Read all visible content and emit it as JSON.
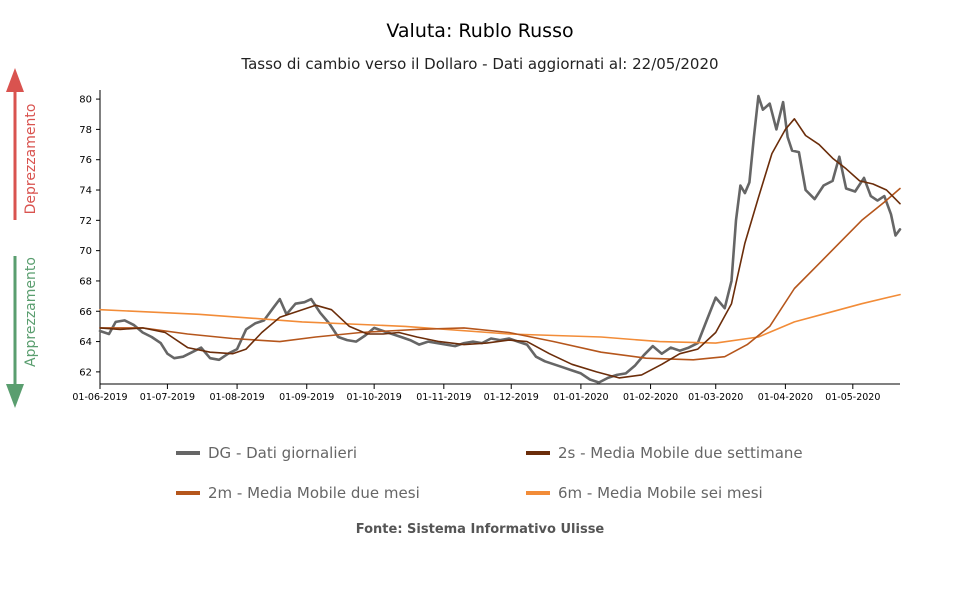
{
  "title": "Valuta: Rublo Russo",
  "subtitle": "Tasso di cambio verso il Dollaro - Dati aggiornati al: 22/05/2020",
  "side_labels": {
    "up": "Deprezzamento",
    "down": "Apprezzamento",
    "up_color": "#d9534f",
    "down_color": "#5a9e6f"
  },
  "source": "Fonte: Sistema Informativo Ulisse",
  "chart_data": {
    "type": "line",
    "title": "Valuta: Rublo Russo",
    "subtitle": "Tasso di cambio verso il Dollaro - Dati aggiornati al: 22/05/2020",
    "xlabel": "",
    "ylabel": "",
    "ylim": [
      61.2,
      80.6
    ],
    "yticks": [
      62,
      64,
      66,
      68,
      70,
      72,
      74,
      76,
      78,
      80
    ],
    "xticks": [
      "01-06-2019",
      "01-07-2019",
      "01-08-2019",
      "01-09-2019",
      "01-10-2019",
      "01-11-2019",
      "01-12-2019",
      "01-01-2020",
      "01-02-2020",
      "01-03-2020",
      "01-04-2020",
      "01-05-2020"
    ],
    "x_range": [
      "2019-06-01",
      "2020-05-22"
    ],
    "grid": false,
    "legend_position": "bottom",
    "series": [
      {
        "name": "DG - Dati giornalieri",
        "color": "#666666",
        "width": 2.6,
        "points": [
          [
            "2019-06-01",
            64.7
          ],
          [
            "2019-06-05",
            64.5
          ],
          [
            "2019-06-08",
            65.3
          ],
          [
            "2019-06-12",
            65.4
          ],
          [
            "2019-06-16",
            65.1
          ],
          [
            "2019-06-20",
            64.6
          ],
          [
            "2019-06-24",
            64.3
          ],
          [
            "2019-06-28",
            63.9
          ],
          [
            "2019-07-01",
            63.2
          ],
          [
            "2019-07-04",
            62.9
          ],
          [
            "2019-07-08",
            63.0
          ],
          [
            "2019-07-12",
            63.3
          ],
          [
            "2019-07-16",
            63.6
          ],
          [
            "2019-07-20",
            62.9
          ],
          [
            "2019-07-24",
            62.8
          ],
          [
            "2019-07-28",
            63.2
          ],
          [
            "2019-08-01",
            63.5
          ],
          [
            "2019-08-05",
            64.8
          ],
          [
            "2019-08-09",
            65.2
          ],
          [
            "2019-08-13",
            65.4
          ],
          [
            "2019-08-17",
            66.2
          ],
          [
            "2019-08-20",
            66.8
          ],
          [
            "2019-08-23",
            65.8
          ],
          [
            "2019-08-27",
            66.5
          ],
          [
            "2019-08-31",
            66.6
          ],
          [
            "2019-09-03",
            66.8
          ],
          [
            "2019-09-07",
            65.9
          ],
          [
            "2019-09-11",
            65.2
          ],
          [
            "2019-09-15",
            64.3
          ],
          [
            "2019-09-19",
            64.1
          ],
          [
            "2019-09-23",
            64.0
          ],
          [
            "2019-09-27",
            64.4
          ],
          [
            "2019-10-01",
            64.9
          ],
          [
            "2019-10-05",
            64.7
          ],
          [
            "2019-10-09",
            64.5
          ],
          [
            "2019-10-13",
            64.3
          ],
          [
            "2019-10-17",
            64.1
          ],
          [
            "2019-10-21",
            63.8
          ],
          [
            "2019-10-25",
            64.0
          ],
          [
            "2019-10-29",
            63.9
          ],
          [
            "2019-11-02",
            63.8
          ],
          [
            "2019-11-06",
            63.7
          ],
          [
            "2019-11-10",
            63.9
          ],
          [
            "2019-11-14",
            64.0
          ],
          [
            "2019-11-18",
            63.9
          ],
          [
            "2019-11-22",
            64.2
          ],
          [
            "2019-11-26",
            64.1
          ],
          [
            "2019-11-30",
            64.2
          ],
          [
            "2019-12-04",
            64.0
          ],
          [
            "2019-12-08",
            63.8
          ],
          [
            "2019-12-12",
            63.0
          ],
          [
            "2019-12-16",
            62.7
          ],
          [
            "2019-12-20",
            62.5
          ],
          [
            "2019-12-24",
            62.3
          ],
          [
            "2019-12-28",
            62.1
          ],
          [
            "2020-01-01",
            61.9
          ],
          [
            "2020-01-05",
            61.5
          ],
          [
            "2020-01-09",
            61.3
          ],
          [
            "2020-01-13",
            61.6
          ],
          [
            "2020-01-17",
            61.8
          ],
          [
            "2020-01-21",
            61.9
          ],
          [
            "2020-01-25",
            62.4
          ],
          [
            "2020-01-29",
            63.1
          ],
          [
            "2020-02-02",
            63.7
          ],
          [
            "2020-02-06",
            63.2
          ],
          [
            "2020-02-10",
            63.6
          ],
          [
            "2020-02-14",
            63.4
          ],
          [
            "2020-02-18",
            63.6
          ],
          [
            "2020-02-22",
            63.9
          ],
          [
            "2020-02-26",
            65.4
          ],
          [
            "2020-03-01",
            66.9
          ],
          [
            "2020-03-05",
            66.2
          ],
          [
            "2020-03-08",
            68.0
          ],
          [
            "2020-03-10",
            72.0
          ],
          [
            "2020-03-12",
            74.3
          ],
          [
            "2020-03-14",
            73.8
          ],
          [
            "2020-03-16",
            74.5
          ],
          [
            "2020-03-18",
            77.5
          ],
          [
            "2020-03-20",
            80.2
          ],
          [
            "2020-03-22",
            79.3
          ],
          [
            "2020-03-25",
            79.7
          ],
          [
            "2020-03-28",
            78.0
          ],
          [
            "2020-03-31",
            79.8
          ],
          [
            "2020-04-02",
            77.5
          ],
          [
            "2020-04-04",
            76.6
          ],
          [
            "2020-04-07",
            76.5
          ],
          [
            "2020-04-10",
            74.0
          ],
          [
            "2020-04-14",
            73.4
          ],
          [
            "2020-04-18",
            74.3
          ],
          [
            "2020-04-22",
            74.6
          ],
          [
            "2020-04-25",
            76.2
          ],
          [
            "2020-04-28",
            74.1
          ],
          [
            "2020-05-02",
            73.9
          ],
          [
            "2020-05-06",
            74.8
          ],
          [
            "2020-05-09",
            73.6
          ],
          [
            "2020-05-12",
            73.3
          ],
          [
            "2020-05-15",
            73.6
          ],
          [
            "2020-05-18",
            72.4
          ],
          [
            "2020-05-20",
            71.0
          ],
          [
            "2020-05-22",
            71.4
          ]
        ]
      },
      {
        "name": "2s - Media Mobile due settimane",
        "color": "#6b2d0a",
        "width": 1.6,
        "points": [
          [
            "2019-06-01",
            64.9
          ],
          [
            "2019-06-10",
            64.8
          ],
          [
            "2019-06-20",
            64.9
          ],
          [
            "2019-06-30",
            64.6
          ],
          [
            "2019-07-10",
            63.6
          ],
          [
            "2019-07-20",
            63.3
          ],
          [
            "2019-07-30",
            63.2
          ],
          [
            "2019-08-05",
            63.5
          ],
          [
            "2019-08-12",
            64.6
          ],
          [
            "2019-08-20",
            65.6
          ],
          [
            "2019-08-28",
            66.0
          ],
          [
            "2019-09-05",
            66.4
          ],
          [
            "2019-09-12",
            66.1
          ],
          [
            "2019-09-20",
            65.0
          ],
          [
            "2019-09-28",
            64.5
          ],
          [
            "2019-10-05",
            64.5
          ],
          [
            "2019-10-12",
            64.6
          ],
          [
            "2019-10-20",
            64.3
          ],
          [
            "2019-10-30",
            64.0
          ],
          [
            "2019-11-10",
            63.8
          ],
          [
            "2019-11-20",
            63.9
          ],
          [
            "2019-11-30",
            64.1
          ],
          [
            "2019-12-08",
            64.0
          ],
          [
            "2019-12-18",
            63.2
          ],
          [
            "2019-12-28",
            62.5
          ],
          [
            "2020-01-08",
            62.0
          ],
          [
            "2020-01-18",
            61.6
          ],
          [
            "2020-01-28",
            61.8
          ],
          [
            "2020-02-06",
            62.5
          ],
          [
            "2020-02-14",
            63.2
          ],
          [
            "2020-02-22",
            63.5
          ],
          [
            "2020-03-01",
            64.6
          ],
          [
            "2020-03-08",
            66.5
          ],
          [
            "2020-03-14",
            70.5
          ],
          [
            "2020-03-20",
            73.5
          ],
          [
            "2020-03-26",
            76.4
          ],
          [
            "2020-04-01",
            78.0
          ],
          [
            "2020-04-05",
            78.7
          ],
          [
            "2020-04-10",
            77.6
          ],
          [
            "2020-04-16",
            77.0
          ],
          [
            "2020-04-22",
            76.1
          ],
          [
            "2020-04-28",
            75.4
          ],
          [
            "2020-05-04",
            74.6
          ],
          [
            "2020-05-10",
            74.4
          ],
          [
            "2020-05-16",
            74.0
          ],
          [
            "2020-05-22",
            73.1
          ]
        ]
      },
      {
        "name": "2m - Media Mobile due mesi",
        "color": "#b5561c",
        "width": 1.6,
        "points": [
          [
            "2019-06-01",
            64.9
          ],
          [
            "2019-06-20",
            64.9
          ],
          [
            "2019-07-10",
            64.5
          ],
          [
            "2019-07-30",
            64.2
          ],
          [
            "2019-08-20",
            64.0
          ],
          [
            "2019-09-05",
            64.3
          ],
          [
            "2019-09-25",
            64.6
          ],
          [
            "2019-10-20",
            64.8
          ],
          [
            "2019-11-10",
            64.9
          ],
          [
            "2019-11-30",
            64.6
          ],
          [
            "2019-12-20",
            64.0
          ],
          [
            "2020-01-10",
            63.3
          ],
          [
            "2020-01-30",
            62.9
          ],
          [
            "2020-02-20",
            62.8
          ],
          [
            "2020-03-05",
            63.0
          ],
          [
            "2020-03-15",
            63.8
          ],
          [
            "2020-03-25",
            65.0
          ],
          [
            "2020-04-05",
            67.5
          ],
          [
            "2020-04-15",
            69.0
          ],
          [
            "2020-04-25",
            70.5
          ],
          [
            "2020-05-05",
            72.0
          ],
          [
            "2020-05-15",
            73.2
          ],
          [
            "2020-05-22",
            74.1
          ]
        ]
      },
      {
        "name": "6m - Media Mobile sei mesi",
        "color": "#f28c38",
        "width": 1.6,
        "points": [
          [
            "2019-06-01",
            66.1
          ],
          [
            "2019-07-15",
            65.8
          ],
          [
            "2019-08-30",
            65.3
          ],
          [
            "2019-10-15",
            65.0
          ],
          [
            "2019-11-30",
            64.5
          ],
          [
            "2020-01-10",
            64.3
          ],
          [
            "2020-02-05",
            64.0
          ],
          [
            "2020-03-01",
            63.9
          ],
          [
            "2020-03-20",
            64.3
          ],
          [
            "2020-04-05",
            65.3
          ],
          [
            "2020-04-20",
            65.9
          ],
          [
            "2020-05-05",
            66.5
          ],
          [
            "2020-05-22",
            67.1
          ]
        ]
      }
    ]
  }
}
